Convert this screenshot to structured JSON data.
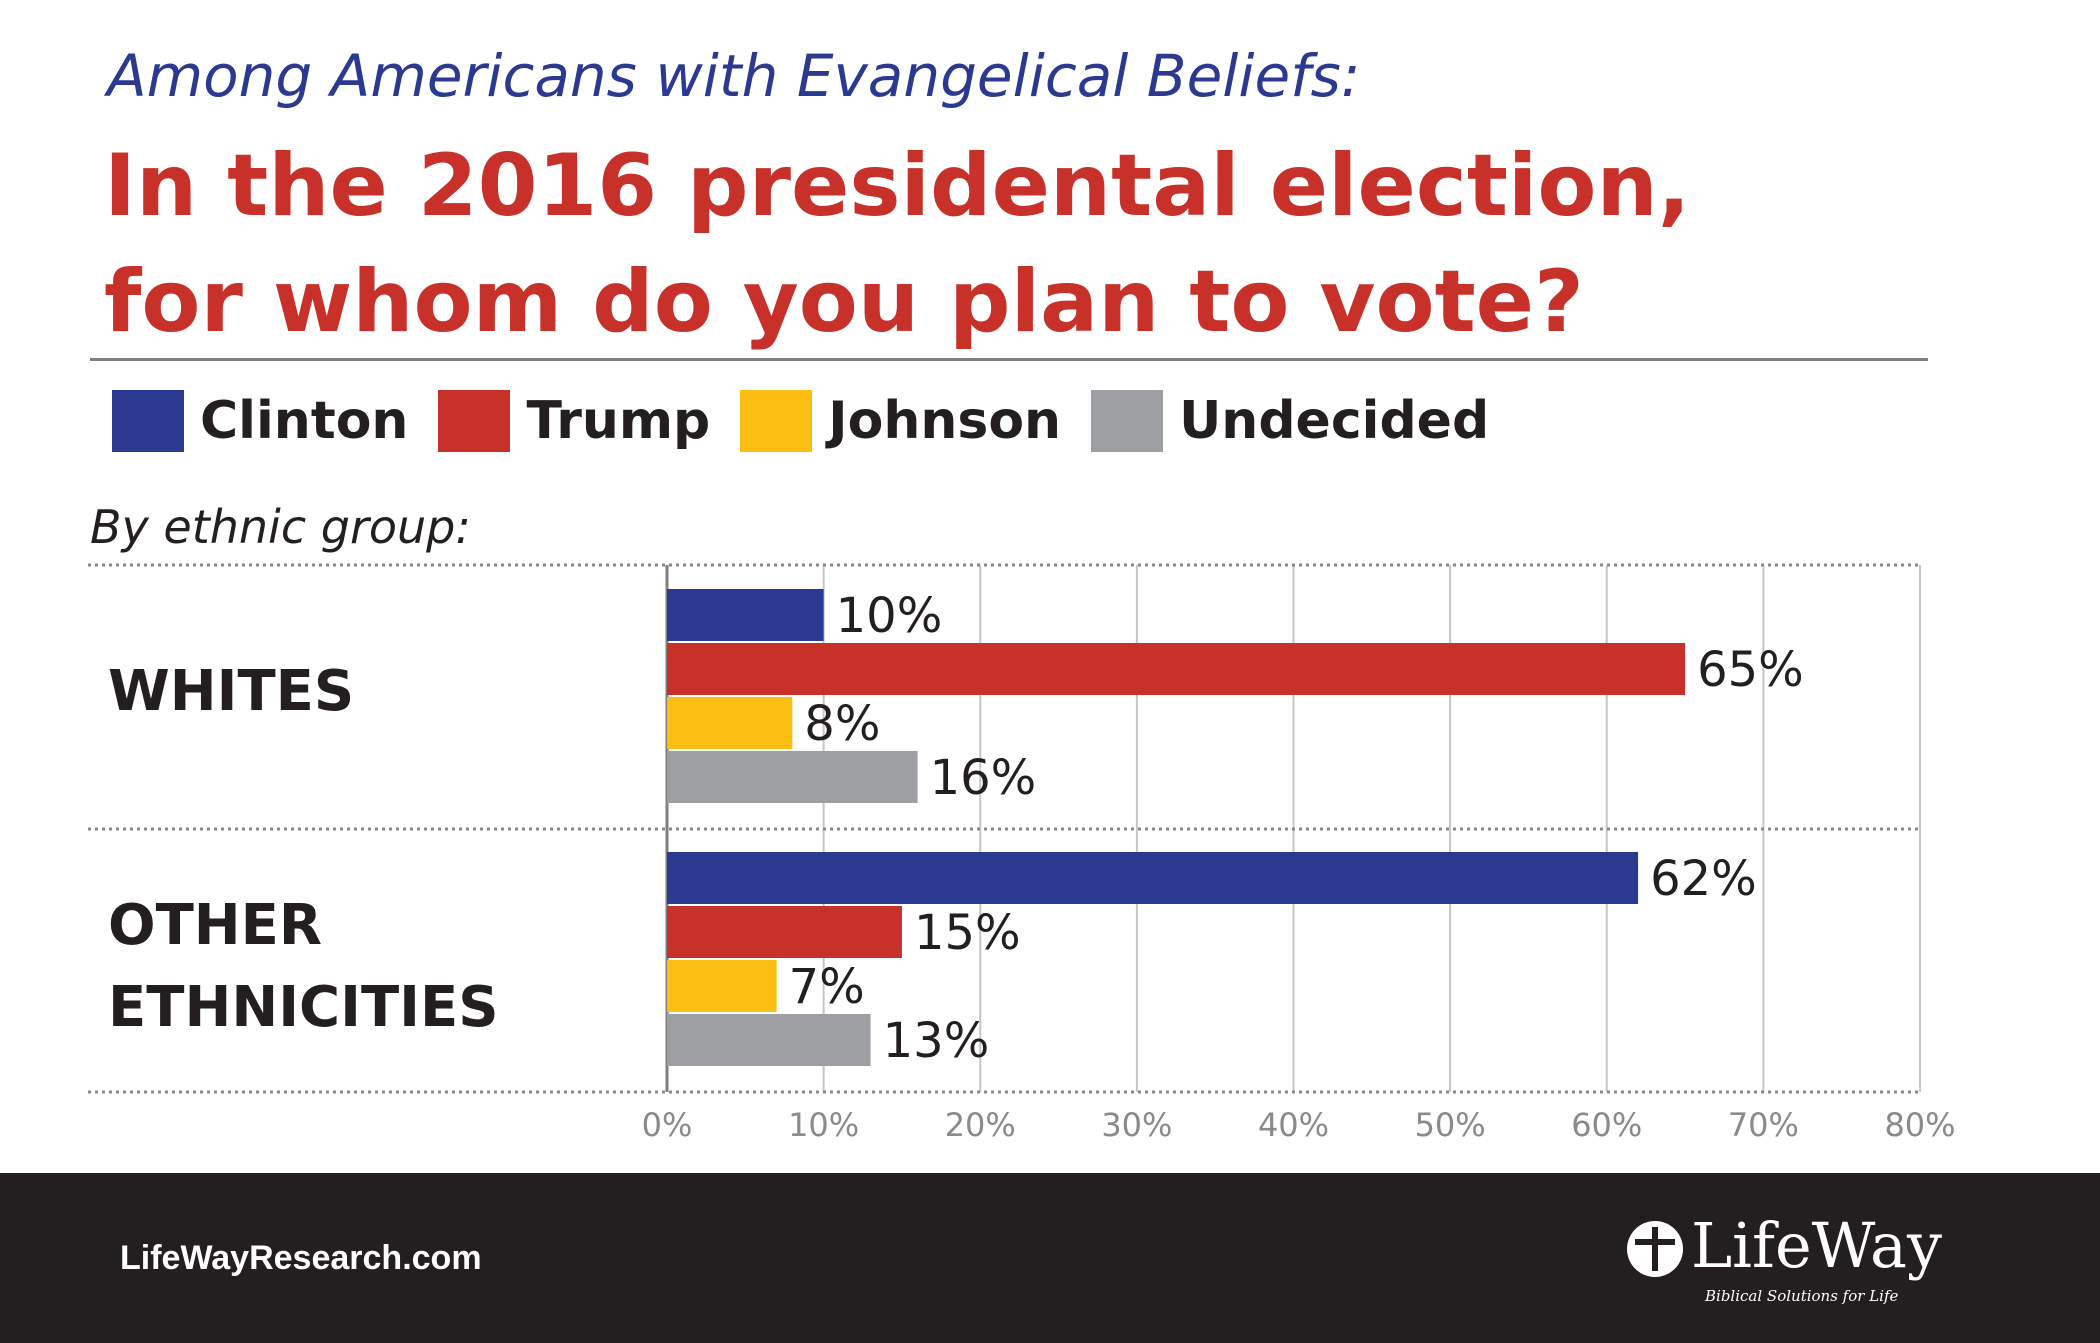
{
  "header": {
    "subtitle": "Among Americans with Evangelical Beliefs:",
    "title_line1": "In the 2016 presidental election,",
    "title_line2": "for whom do you plan to vote?"
  },
  "group_caption": "By ethnic group:",
  "colors": {
    "Clinton": "#2b3990",
    "Trump": "#c8312a",
    "Johnson": "#fdbe14",
    "Undecided": "#9d9fa2"
  },
  "chart_data": {
    "type": "bar",
    "orientation": "horizontal",
    "categories": [
      "WHITES",
      "OTHER ETHNICITIES"
    ],
    "series": [
      {
        "name": "Clinton",
        "values": [
          10,
          62
        ],
        "labels": [
          "10%",
          "62%"
        ]
      },
      {
        "name": "Trump",
        "values": [
          65,
          15
        ],
        "labels": [
          "65%",
          "15%"
        ]
      },
      {
        "name": "Johnson",
        "values": [
          8,
          7
        ],
        "labels": [
          "8%",
          "7%"
        ]
      },
      {
        "name": "Undecided",
        "values": [
          16,
          13
        ],
        "labels": [
          "16%",
          "13%"
        ]
      }
    ],
    "xlim": [
      0,
      80
    ],
    "ticks": [
      "0%",
      "10%",
      "20%",
      "30%",
      "40%",
      "50%",
      "60%",
      "70%",
      "80%"
    ],
    "grid": true,
    "legend": "top-left"
  },
  "footer": {
    "url": "LifeWayResearch.com",
    "logo_text": "LifeWay",
    "logo_tagline": "Biblical Solutions for Life"
  }
}
